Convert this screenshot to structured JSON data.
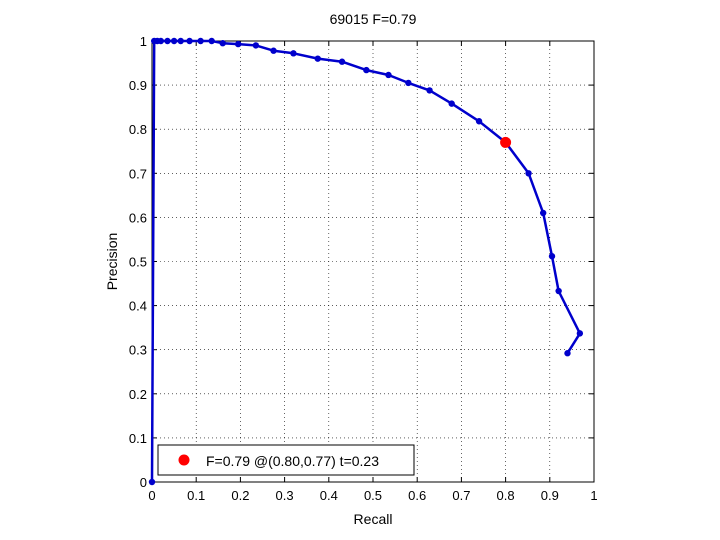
{
  "chart_data": {
    "type": "line",
    "title": "69015 F=0.79",
    "xlabel": "Recall",
    "ylabel": "Precision",
    "xlim": [
      0,
      1
    ],
    "ylim": [
      0,
      1
    ],
    "grid": true,
    "x_ticks": [
      "0",
      "0.1",
      "0.2",
      "0.3",
      "0.4",
      "0.5",
      "0.6",
      "0.7",
      "0.8",
      "0.9",
      "1"
    ],
    "y_ticks": [
      "0",
      "0.1",
      "0.2",
      "0.3",
      "0.4",
      "0.5",
      "0.6",
      "0.7",
      "0.8",
      "0.9",
      "1"
    ],
    "series": [
      {
        "color": "#0000cc",
        "points": [
          [
            0.0,
            0.0
          ],
          [
            0.005,
            1.0
          ],
          [
            0.012,
            1.0
          ],
          [
            0.02,
            1.0
          ],
          [
            0.035,
            1.0
          ],
          [
            0.05,
            1.0
          ],
          [
            0.065,
            1.0
          ],
          [
            0.085,
            1.0
          ],
          [
            0.11,
            1.0
          ],
          [
            0.135,
            1.0
          ],
          [
            0.16,
            0.995
          ],
          [
            0.195,
            0.993
          ],
          [
            0.235,
            0.99
          ],
          [
            0.275,
            0.978
          ],
          [
            0.32,
            0.972
          ],
          [
            0.375,
            0.96
          ],
          [
            0.43,
            0.953
          ],
          [
            0.485,
            0.934
          ],
          [
            0.535,
            0.923
          ],
          [
            0.58,
            0.905
          ],
          [
            0.628,
            0.888
          ],
          [
            0.678,
            0.858
          ],
          [
            0.74,
            0.818
          ],
          [
            0.8,
            0.77
          ],
          [
            0.852,
            0.7
          ],
          [
            0.885,
            0.61
          ],
          [
            0.905,
            0.512
          ],
          [
            0.92,
            0.433
          ],
          [
            0.968,
            0.337
          ],
          [
            0.94,
            0.292
          ]
        ]
      }
    ],
    "best_point": {
      "x": 0.8,
      "y": 0.77,
      "color": "#ff0000"
    },
    "legend": {
      "position": "bottom-left",
      "entries": [
        {
          "label": "F=0.79 @(0.80,0.77) t=0.23",
          "color": "#ff0000"
        }
      ]
    }
  }
}
